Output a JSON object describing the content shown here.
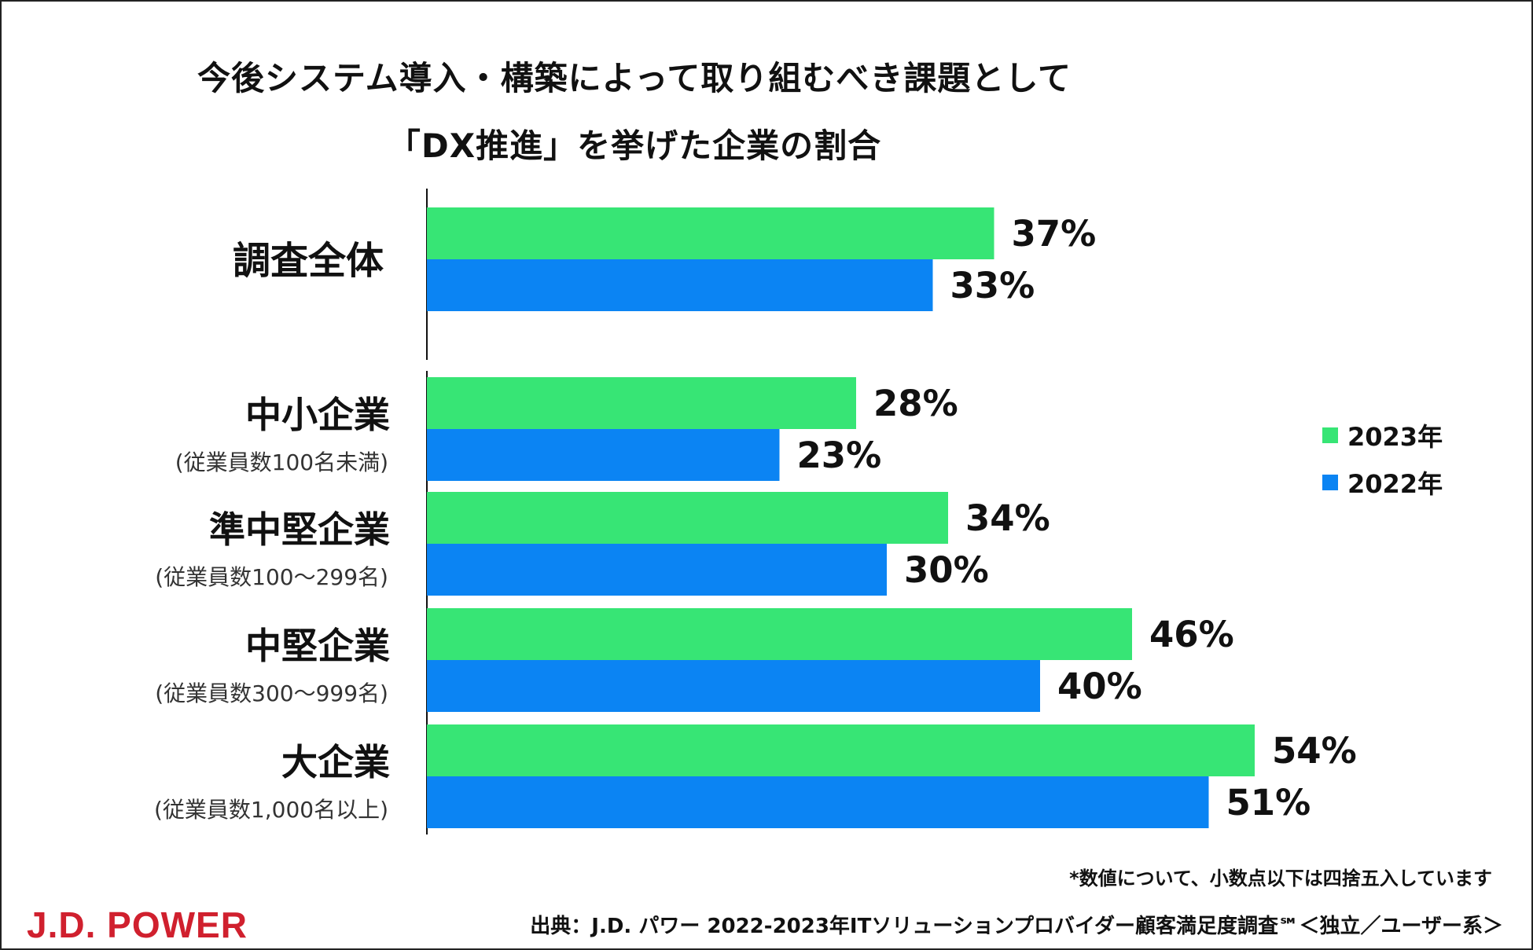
{
  "title": {
    "line1": "今後システム導入・構築によって取り組むべき課題として",
    "line2": "「DX推進」を挙げた企業の割合"
  },
  "chart_data": {
    "type": "bar",
    "orientation": "horizontal",
    "title": "今後システム導入・構築によって取り組むべき課題として「DX推進」を挙げた企業の割合",
    "categories": [
      {
        "label": "調査全体",
        "sublabel": ""
      },
      {
        "label": "中小企業",
        "sublabel": "(従業員数100名未満)"
      },
      {
        "label": "準中堅企業",
        "sublabel": "(従業員数100～299名)"
      },
      {
        "label": "中堅企業",
        "sublabel": "(従業員数300～999名)"
      },
      {
        "label": "大企業",
        "sublabel": "(従業員数1,000名以上)"
      }
    ],
    "series": [
      {
        "name": "2023年",
        "color": "#37e575",
        "values": [
          37,
          28,
          34,
          46,
          54
        ]
      },
      {
        "name": "2022年",
        "color": "#0b84f3",
        "values": [
          33,
          23,
          30,
          40,
          51
        ]
      }
    ],
    "unit": "%",
    "xlim": [
      0,
      100
    ],
    "grid": false,
    "legend_position": "right"
  },
  "legend": {
    "items": [
      {
        "label": "2023年",
        "color": "#37e575"
      },
      {
        "label": "2022年",
        "color": "#0b84f3"
      }
    ]
  },
  "footer": {
    "note": "*数値について、小数点以下は四捨五入しています",
    "source": "出典：J.D. パワー 2022-2023年ITソリューションプロバイダー顧客満足度調査℠＜独立／ユーザー系＞",
    "logo": "J.D. POWER"
  }
}
